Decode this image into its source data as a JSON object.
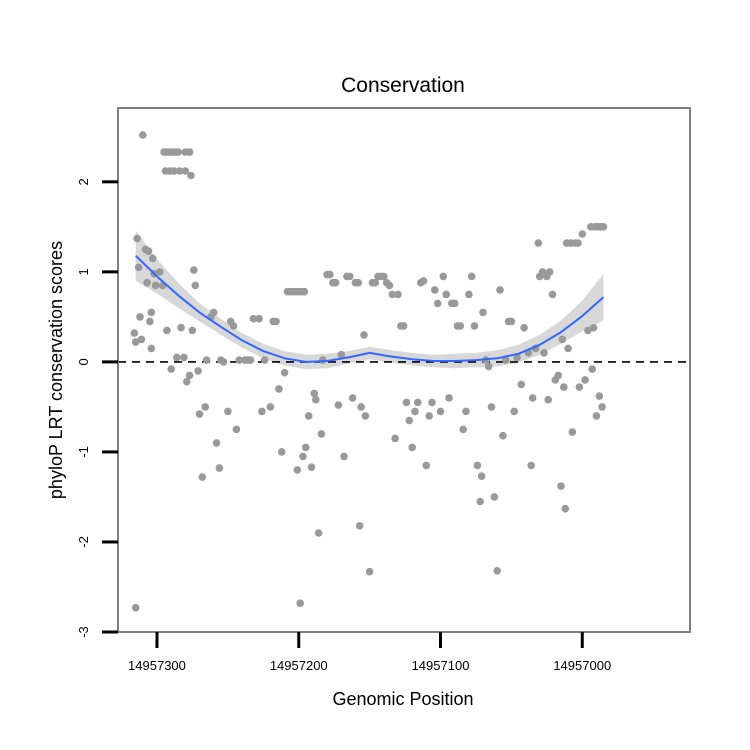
{
  "colors": {
    "points": "#999999",
    "smooth_line": "#3366ff",
    "ribbon": "#d4d4d4",
    "grid": "#f2f2f2",
    "panel_border": "#808080",
    "reference_line": "#000000"
  },
  "chart_data": {
    "type": "scatter",
    "title": "Conservation",
    "xlabel": "Genomic Position",
    "ylabel": "phyloP LRT conservation scores",
    "x_reversed": true,
    "xlim": [
      14957327.5,
      14956924
    ],
    "ylim": [
      -3,
      2.82
    ],
    "x_ticks": [
      14957300,
      14957200,
      14957100,
      14957000
    ],
    "x_tick_labels": [
      "14957300",
      "14957200",
      "14957100",
      "14957000"
    ],
    "y_ticks": [
      -3,
      -2,
      -1,
      0,
      1,
      2
    ],
    "y_tick_labels": [
      "-3",
      "-2",
      "-1",
      "0",
      "1",
      "2"
    ],
    "grid": true,
    "reference_line": {
      "y": 0,
      "style": "dashed"
    },
    "series": [
      {
        "points": [
          [
            14957310,
            2.52
          ],
          [
            14957315,
            -2.73
          ],
          [
            14957314,
            1.37
          ],
          [
            14957313,
            1.05
          ],
          [
            14957312,
            0.5
          ],
          [
            14957311,
            0.25
          ],
          [
            14957316,
            0.32
          ],
          [
            14957315,
            0.22
          ],
          [
            14957308,
            1.25
          ],
          [
            14957306,
            1.23
          ],
          [
            14957305,
            0.45
          ],
          [
            14957304,
            0.55
          ],
          [
            14957307,
            0.88
          ],
          [
            14957303,
            1.15
          ],
          [
            14957302,
            0.98
          ],
          [
            14957301,
            0.85
          ],
          [
            14957304,
            0.15
          ],
          [
            14957295,
            2.33
          ],
          [
            14957293,
            2.33
          ],
          [
            14957291,
            2.33
          ],
          [
            14957289,
            2.33
          ],
          [
            14957287,
            2.33
          ],
          [
            14957285,
            2.33
          ],
          [
            14957280,
            2.33
          ],
          [
            14957277,
            2.33
          ],
          [
            14957294,
            2.12
          ],
          [
            14957291,
            2.12
          ],
          [
            14957288,
            2.12
          ],
          [
            14957284,
            2.12
          ],
          [
            14957280,
            2.12
          ],
          [
            14957276,
            2.07
          ],
          [
            14957298,
            1.0
          ],
          [
            14957296,
            0.85
          ],
          [
            14957293,
            0.35
          ],
          [
            14957290,
            -0.08
          ],
          [
            14957286,
            0.05
          ],
          [
            14957283,
            0.38
          ],
          [
            14957281,
            0.05
          ],
          [
            14957279,
            -0.22
          ],
          [
            14957277,
            -0.15
          ],
          [
            14957275,
            0.35
          ],
          [
            14957274,
            1.02
          ],
          [
            14957273,
            0.85
          ],
          [
            14957271,
            -0.1
          ],
          [
            14957270,
            -0.58
          ],
          [
            14957268,
            -1.28
          ],
          [
            14957265,
            0.02
          ],
          [
            14957266,
            -0.5
          ],
          [
            14957262,
            0.5
          ],
          [
            14957260,
            0.55
          ],
          [
            14957258,
            -0.9
          ],
          [
            14957256,
            -1.18
          ],
          [
            14957255,
            0.02
          ],
          [
            14957253,
            0.0
          ],
          [
            14957250,
            -0.55
          ],
          [
            14957248,
            0.45
          ],
          [
            14957246,
            0.4
          ],
          [
            14957244,
            -0.75
          ],
          [
            14957242,
            0.02
          ],
          [
            14957238,
            0.02
          ],
          [
            14957236,
            0.02
          ],
          [
            14957234,
            0.02
          ],
          [
            14957232,
            0.48
          ],
          [
            14957228,
            0.48
          ],
          [
            14957226,
            -0.55
          ],
          [
            14957224,
            0.02
          ],
          [
            14957220,
            -0.5
          ],
          [
            14957218,
            0.45
          ],
          [
            14957216,
            0.45
          ],
          [
            14957214,
            -0.3
          ],
          [
            14957212,
            -1.0
          ],
          [
            14957210,
            -0.12
          ],
          [
            14957208,
            0.78
          ],
          [
            14957206,
            0.78
          ],
          [
            14957204,
            0.78
          ],
          [
            14957202,
            0.78
          ],
          [
            14957200,
            0.78
          ],
          [
            14957198,
            0.78
          ],
          [
            14957196,
            0.78
          ],
          [
            14957201,
            -1.2
          ],
          [
            14957199,
            -2.68
          ],
          [
            14957197,
            -1.05
          ],
          [
            14957195,
            -0.95
          ],
          [
            14957193,
            -0.6
          ],
          [
            14957191,
            -1.17
          ],
          [
            14957189,
            -0.35
          ],
          [
            14957188,
            -0.42
          ],
          [
            14957186,
            -1.9
          ],
          [
            14957184,
            -0.8
          ],
          [
            14957183,
            0.02
          ],
          [
            14957180,
            0.97
          ],
          [
            14957178,
            0.97
          ],
          [
            14957176,
            0.88
          ],
          [
            14957174,
            0.88
          ],
          [
            14957172,
            -0.48
          ],
          [
            14957170,
            0.08
          ],
          [
            14957168,
            -1.05
          ],
          [
            14957166,
            0.95
          ],
          [
            14957164,
            0.95
          ],
          [
            14957162,
            -0.4
          ],
          [
            14957160,
            0.88
          ],
          [
            14957158,
            0.88
          ],
          [
            14957157,
            -1.82
          ],
          [
            14957156,
            -0.5
          ],
          [
            14957154,
            0.3
          ],
          [
            14957153,
            -0.6
          ],
          [
            14957150,
            -2.33
          ],
          [
            14957148,
            0.88
          ],
          [
            14957146,
            0.88
          ],
          [
            14957144,
            0.95
          ],
          [
            14957142,
            0.95
          ],
          [
            14957140,
            0.95
          ],
          [
            14957138,
            0.88
          ],
          [
            14957136,
            0.85
          ],
          [
            14957134,
            0.75
          ],
          [
            14957132,
            -0.85
          ],
          [
            14957130,
            0.75
          ],
          [
            14957128,
            0.4
          ],
          [
            14957126,
            0.4
          ],
          [
            14957124,
            -0.45
          ],
          [
            14957122,
            -0.65
          ],
          [
            14957120,
            -0.95
          ],
          [
            14957118,
            -0.55
          ],
          [
            14957116,
            -0.45
          ],
          [
            14957114,
            0.88
          ],
          [
            14957112,
            0.9
          ],
          [
            14957110,
            -1.15
          ],
          [
            14957108,
            -0.6
          ],
          [
            14957106,
            -0.45
          ],
          [
            14957104,
            0.8
          ],
          [
            14957102,
            0.65
          ],
          [
            14957100,
            -0.55
          ],
          [
            14957098,
            0.95
          ],
          [
            14957096,
            0.75
          ],
          [
            14957094,
            -0.4
          ],
          [
            14957092,
            0.65
          ],
          [
            14957090,
            0.65
          ],
          [
            14957088,
            0.4
          ],
          [
            14957086,
            0.4
          ],
          [
            14957084,
            -0.75
          ],
          [
            14957082,
            -0.55
          ],
          [
            14957080,
            0.75
          ],
          [
            14957078,
            0.95
          ],
          [
            14957076,
            0.4
          ],
          [
            14957074,
            -1.15
          ],
          [
            14957072,
            -1.55
          ],
          [
            14957071,
            -1.27
          ],
          [
            14957070,
            0.55
          ],
          [
            14957068,
            0.02
          ],
          [
            14957066,
            -0.05
          ],
          [
            14957064,
            -0.5
          ],
          [
            14957062,
            -1.5
          ],
          [
            14957060,
            -2.32
          ],
          [
            14957058,
            0.8
          ],
          [
            14957056,
            -0.82
          ],
          [
            14957054,
            0.02
          ],
          [
            14957052,
            0.45
          ],
          [
            14957050,
            0.45
          ],
          [
            14957048,
            -0.55
          ],
          [
            14957046,
            0.05
          ],
          [
            14957043,
            -0.25
          ],
          [
            14957041,
            0.38
          ],
          [
            14957038,
            0.1
          ],
          [
            14957036,
            -1.15
          ],
          [
            14957035,
            -0.4
          ],
          [
            14957033,
            0.15
          ],
          [
            14957031,
            1.32
          ],
          [
            14957030,
            0.95
          ],
          [
            14957028,
            1.0
          ],
          [
            14957027,
            0.1
          ],
          [
            14957025,
            0.95
          ],
          [
            14957024,
            -0.42
          ],
          [
            14957023,
            1.0
          ],
          [
            14957021,
            0.75
          ],
          [
            14957019,
            -0.2
          ],
          [
            14957017,
            -0.15
          ],
          [
            14957015,
            -1.38
          ],
          [
            14957014,
            0.25
          ],
          [
            14957013,
            -0.28
          ],
          [
            14957012,
            -1.63
          ],
          [
            14957011,
            1.32
          ],
          [
            14957010,
            0.15
          ],
          [
            14957008,
            1.32
          ],
          [
            14957007,
            -0.78
          ],
          [
            14957005,
            1.32
          ],
          [
            14957003,
            1.32
          ],
          [
            14957002,
            -0.28
          ],
          [
            14957000,
            1.42
          ],
          [
            14956998,
            -0.2
          ],
          [
            14956996,
            0.35
          ],
          [
            14956994,
            1.5
          ],
          [
            14956993,
            -0.08
          ],
          [
            14956992,
            0.38
          ],
          [
            14956991,
            1.5
          ],
          [
            14956990,
            -0.6
          ],
          [
            14956989,
            1.5
          ],
          [
            14956988,
            -0.38
          ],
          [
            14956987,
            1.5
          ],
          [
            14956986,
            -0.5
          ],
          [
            14956985,
            1.5
          ]
        ]
      }
    ],
    "smooth": {
      "x": [
        14957315,
        14957300,
        14957285,
        14957270,
        14957255,
        14957240,
        14957225,
        14957210,
        14957195,
        14957180,
        14957165,
        14957150,
        14957135,
        14957120,
        14957105,
        14957090,
        14957075,
        14957060,
        14957045,
        14957030,
        14957015,
        14957000,
        14956985
      ],
      "y": [
        1.18,
        0.95,
        0.74,
        0.55,
        0.39,
        0.24,
        0.12,
        0.04,
        0.0,
        0.01,
        0.05,
        0.1,
        0.06,
        0.03,
        0.01,
        0.01,
        0.02,
        0.04,
        0.09,
        0.19,
        0.33,
        0.51,
        0.72
      ],
      "lower": [
        0.9,
        0.76,
        0.6,
        0.45,
        0.3,
        0.16,
        0.04,
        -0.04,
        -0.08,
        -0.07,
        -0.02,
        0.03,
        -0.01,
        -0.04,
        -0.06,
        -0.07,
        -0.06,
        -0.05,
        -0.01,
        0.08,
        0.2,
        0.34,
        0.46
      ],
      "upper": [
        1.46,
        1.14,
        0.88,
        0.65,
        0.48,
        0.32,
        0.2,
        0.12,
        0.08,
        0.09,
        0.12,
        0.17,
        0.13,
        0.1,
        0.08,
        0.09,
        0.1,
        0.13,
        0.19,
        0.3,
        0.46,
        0.68,
        0.98
      ]
    }
  }
}
